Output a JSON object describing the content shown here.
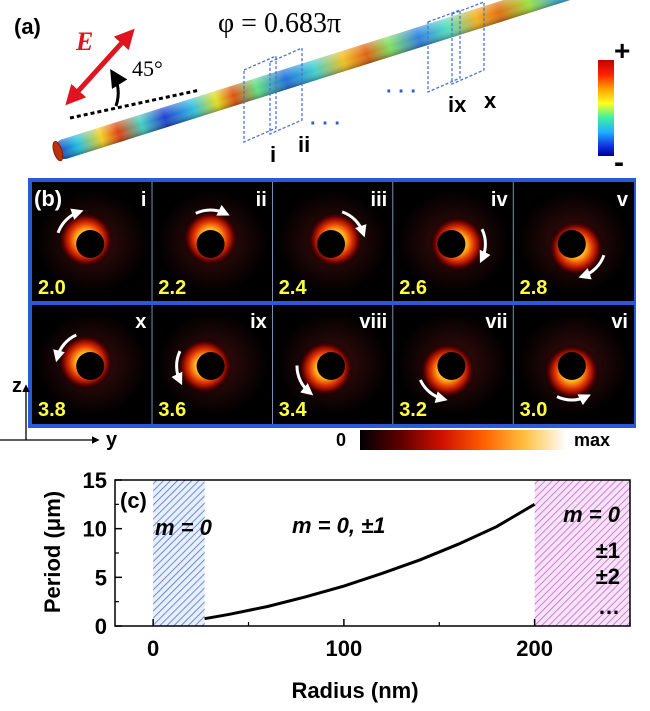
{
  "panel_a": {
    "label": "(a)",
    "e_label": "E",
    "angle": "45°",
    "phase": "φ = 0.683π",
    "plane_labels": [
      "i",
      "ii",
      "ix",
      "x"
    ],
    "ellipsis": "· · ·",
    "colorbar": {
      "plus": "+",
      "minus": "-"
    }
  },
  "panel_b": {
    "label": "(b)",
    "frames": [
      {
        "roman": "i",
        "value": "2.0",
        "arrow_deg": 135,
        "dir": 1
      },
      {
        "roman": "ii",
        "value": "2.2",
        "arrow_deg": 90,
        "dir": 1
      },
      {
        "roman": "iii",
        "value": "2.4",
        "arrow_deg": 45,
        "dir": 1
      },
      {
        "roman": "iv",
        "value": "2.6",
        "arrow_deg": 0,
        "dir": 1
      },
      {
        "roman": "v",
        "value": "2.8",
        "arrow_deg": -45,
        "dir": 1
      },
      {
        "roman": "x",
        "value": "3.8",
        "arrow_deg": 140,
        "dir": -1
      },
      {
        "roman": "ix",
        "value": "3.6",
        "arrow_deg": 180,
        "dir": -1
      },
      {
        "roman": "viii",
        "value": "3.4",
        "arrow_deg": 205,
        "dir": -1
      },
      {
        "roman": "vii",
        "value": "3.2",
        "arrow_deg": 230,
        "dir": -1
      },
      {
        "roman": "vi",
        "value": "3.0",
        "arrow_deg": 270,
        "dir": -1
      }
    ],
    "axis_z": "z",
    "axis_y": "y",
    "intensity_min": "0",
    "intensity_max": "max"
  },
  "chart_data": {
    "type": "line",
    "panel_label": "(c)",
    "xlabel": "Radius (nm)",
    "ylabel": "Period (μm)",
    "xlim": [
      -20,
      250
    ],
    "ylim": [
      0,
      15
    ],
    "xticks": [
      0,
      100,
      200
    ],
    "yticks": [
      0,
      5,
      10,
      15
    ],
    "series": [
      {
        "name": "period",
        "x": [
          27,
          40,
          60,
          80,
          100,
          120,
          140,
          160,
          180,
          200
        ],
        "y": [
          0.75,
          1.2,
          2.0,
          3.0,
          4.1,
          5.4,
          6.8,
          8.4,
          10.2,
          12.5
        ]
      }
    ],
    "regions": [
      {
        "x0": 0,
        "x1": 27,
        "color": "#3f6fd0",
        "text": "m = 0"
      },
      {
        "x0": 200,
        "x1": 250,
        "color": "#c060c8",
        "text": ""
      }
    ],
    "middle_text": "m = 0, ±1",
    "right_text": [
      "m = 0",
      "±1",
      "±2",
      "…"
    ]
  }
}
